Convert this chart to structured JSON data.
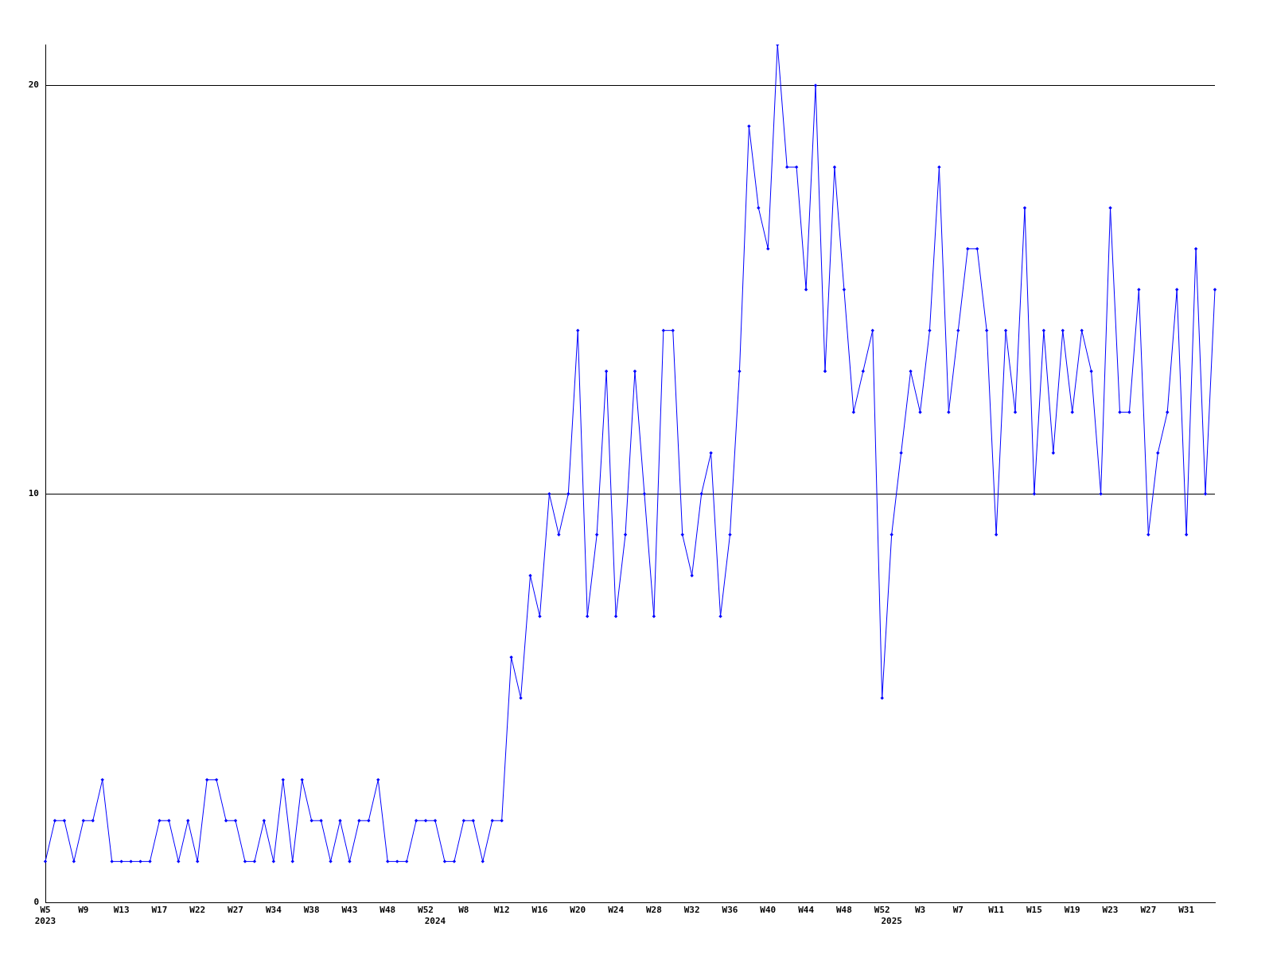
{
  "chart_data": {
    "type": "line",
    "categories": [
      "W5\n2023",
      null,
      null,
      null,
      "W9",
      null,
      null,
      null,
      "W13",
      null,
      null,
      null,
      "W17",
      null,
      null,
      null,
      "W22",
      null,
      null,
      null,
      "W27",
      null,
      null,
      null,
      "W34",
      null,
      null,
      null,
      "W38",
      null,
      null,
      null,
      "W43",
      null,
      null,
      null,
      "W48",
      null,
      null,
      null,
      "W52",
      "\n2024",
      null,
      null,
      "W8",
      null,
      null,
      null,
      "W12",
      null,
      null,
      null,
      "W16",
      null,
      null,
      null,
      "W20",
      null,
      null,
      null,
      "W24",
      null,
      null,
      null,
      "W28",
      null,
      null,
      null,
      "W32",
      null,
      null,
      null,
      "W36",
      null,
      null,
      null,
      "W40",
      null,
      null,
      null,
      "W44",
      null,
      null,
      null,
      "W48",
      null,
      null,
      null,
      "W52",
      "\n2025",
      null,
      null,
      "W3",
      null,
      null,
      null,
      "W7",
      null,
      null,
      null,
      "W11",
      null,
      null,
      null,
      "W15",
      null,
      null,
      null,
      "W19",
      null,
      null,
      null,
      "W23",
      null,
      null,
      null,
      "W27",
      null,
      null,
      null,
      "W31",
      null,
      null,
      null
    ],
    "series": [
      {
        "color": "#0000ff",
        "values": [
          1,
          2,
          2,
          1,
          2,
          2,
          3,
          1,
          1,
          1,
          1,
          1,
          2,
          2,
          1,
          2,
          1,
          3,
          3,
          2,
          2,
          1,
          1,
          2,
          1,
          3,
          1,
          3,
          2,
          2,
          1,
          2,
          1,
          2,
          2,
          3,
          1,
          1,
          1,
          2,
          2,
          2,
          1,
          1,
          2,
          2,
          1,
          2,
          2,
          6,
          5,
          8,
          7,
          10,
          9,
          10,
          14,
          7,
          9,
          13,
          7,
          9,
          13,
          10,
          7,
          14,
          14,
          9,
          8,
          10,
          11,
          7,
          9,
          13,
          19,
          17,
          16,
          21,
          18,
          18,
          15,
          20,
          13,
          18,
          15,
          12,
          13,
          14,
          5,
          9,
          11,
          13,
          12,
          14,
          18,
          12,
          14,
          16,
          16,
          14,
          9,
          14,
          12,
          17,
          10,
          14,
          11,
          14,
          12,
          14,
          13,
          10,
          17,
          12,
          12,
          15,
          9,
          11,
          12,
          15,
          9,
          16,
          10,
          15
        ]
      }
    ],
    "ylim": [
      0,
      21
    ],
    "yticks": [
      0,
      10,
      20
    ],
    "grid": "y",
    "legend": false,
    "marker": "diamond",
    "line_style": "solid"
  }
}
